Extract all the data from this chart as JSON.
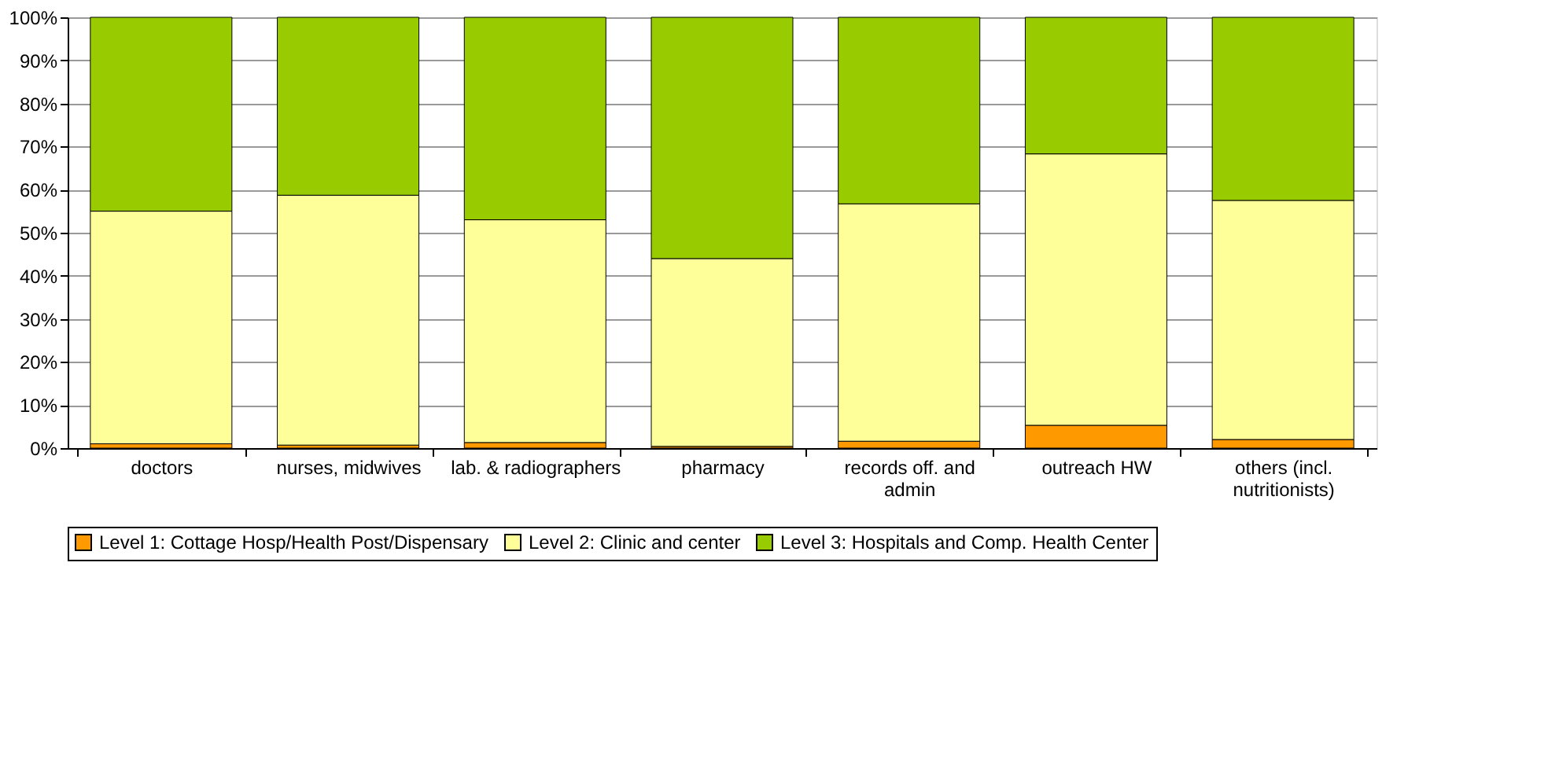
{
  "chart_data": {
    "type": "bar",
    "stacked": true,
    "categories": [
      "doctors",
      "nurses, midwives",
      "lab. & radiographers",
      "pharmacy",
      "records off. and admin",
      "outreach HW",
      "others (incl. nutritionists)"
    ],
    "series": [
      {
        "name": "Level 1: Cottage Hosp/Health Post/Dispensary",
        "color": "#ff9900",
        "values": [
          1,
          0.7,
          1.3,
          0.4,
          1.6,
          5.3,
          2
        ]
      },
      {
        "name": "Level 2: Clinic and center",
        "color": "#ffff99",
        "values": [
          54,
          58,
          51.7,
          43.6,
          55.1,
          63,
          55.5
        ]
      },
      {
        "name": "Level 3: Hospitals and Comp. Health Center",
        "color": "#99cc00",
        "values": [
          45,
          41.3,
          47,
          56,
          43.3,
          31.7,
          42.5
        ]
      }
    ],
    "ylim": [
      0,
      100
    ],
    "yticks": [
      {
        "value": 0,
        "label": "0%"
      },
      {
        "value": 10,
        "label": "10%"
      },
      {
        "value": 20,
        "label": "20%"
      },
      {
        "value": 30,
        "label": "30%"
      },
      {
        "value": 40,
        "label": "40%"
      },
      {
        "value": 50,
        "label": "50%"
      },
      {
        "value": 60,
        "label": "60%"
      },
      {
        "value": 70,
        "label": "70%"
      },
      {
        "value": 80,
        "label": "80%"
      },
      {
        "value": 90,
        "label": "90%"
      },
      {
        "value": 100,
        "label": "100%"
      }
    ],
    "grid": "y",
    "legend": "bottom"
  }
}
